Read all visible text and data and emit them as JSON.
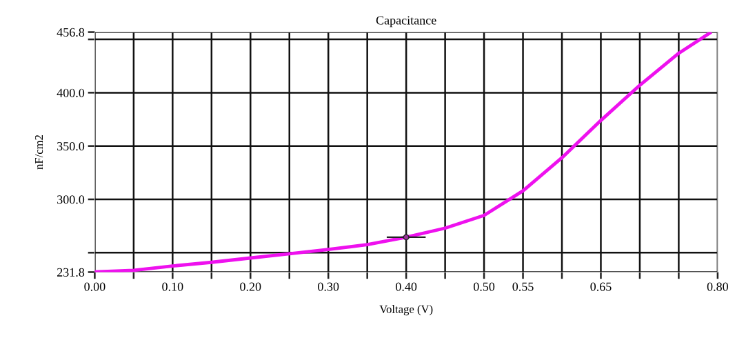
{
  "chart_data": {
    "type": "line",
    "title": "Capacitance",
    "xlabel": "Voltage (V)",
    "ylabel": "nF/cm2",
    "xlim": [
      0,
      0.8
    ],
    "ylim": [
      231.8,
      456.8
    ],
    "xticks": [
      {
        "value": 0,
        "label": "0.00"
      },
      {
        "value": 0.05,
        "label": null
      },
      {
        "value": 0.1,
        "label": "0.10"
      },
      {
        "value": 0.15,
        "label": null
      },
      {
        "value": 0.2,
        "label": "0.20"
      },
      {
        "value": 0.25,
        "label": null
      },
      {
        "value": 0.3,
        "label": "0.30"
      },
      {
        "value": 0.35,
        "label": null
      },
      {
        "value": 0.4,
        "label": "0.40"
      },
      {
        "value": 0.45,
        "label": null
      },
      {
        "value": 0.5,
        "label": "0.50"
      },
      {
        "value": 0.55,
        "label": "0.55"
      },
      {
        "value": 0.6,
        "label": null
      },
      {
        "value": 0.65,
        "label": "0.65"
      },
      {
        "value": 0.7,
        "label": null
      },
      {
        "value": 0.75,
        "label": null
      },
      {
        "value": 0.8,
        "label": "0.80"
      }
    ],
    "yticks": [
      231.8,
      {
        "value": 250,
        "label": null
      },
      {
        "value": 300,
        "label": "300.0"
      },
      {
        "value": 350,
        "label": "350.0"
      },
      {
        "value": 400,
        "label": "400.0"
      },
      {
        "value": 450,
        "label": null
      },
      456.8
    ],
    "grid": true,
    "legend": false,
    "series": [
      {
        "color": "#ee11ee",
        "x": [
          0,
          0.05,
          0.1,
          0.15,
          0.2,
          0.25,
          0.3,
          0.35,
          0.4,
          0.45,
          0.5,
          0.55,
          0.6,
          0.65,
          0.7,
          0.75,
          0.79
        ],
        "values": [
          232,
          233.5,
          237.5,
          241,
          245,
          249,
          253,
          257.5,
          264.5,
          273,
          285,
          308,
          339,
          374,
          407,
          437,
          456
        ]
      },
      {
        "type": "scatter",
        "marker": "circle",
        "color": "#993399",
        "x": [
          0.4
        ],
        "values": [
          264.5
        ],
        "xerrors": [
          0.025
        ]
      }
    ]
  }
}
